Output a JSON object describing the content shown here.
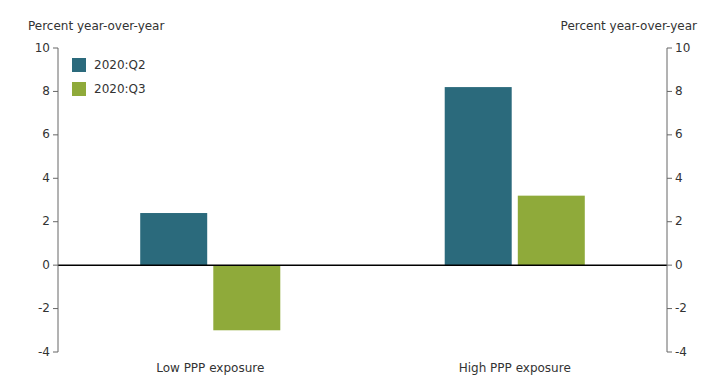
{
  "chart_data": {
    "type": "bar",
    "categories": [
      "Low PPP exposure",
      "High PPP exposure"
    ],
    "series": [
      {
        "name": "2020:Q2",
        "color": "#2b6a7c",
        "values": [
          2.4,
          8.2
        ]
      },
      {
        "name": "2020:Q3",
        "color": "#8faa3a",
        "values": [
          -3.0,
          3.2
        ]
      }
    ],
    "ylabel": "Percent year-over-year",
    "y2label": "Percent year-over-year",
    "ylim": [
      -4,
      10
    ],
    "yticks": [
      -4,
      -2,
      0,
      2,
      4,
      6,
      8,
      10
    ],
    "y2lim": [
      -4,
      10
    ],
    "y2ticks": [
      -4,
      -2,
      0,
      2,
      4,
      6,
      8,
      10
    ],
    "grid": false,
    "legend": "upper left"
  }
}
